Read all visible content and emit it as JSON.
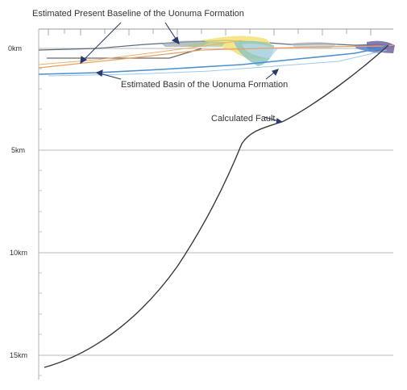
{
  "annotations": {
    "present_baseline": "Estimated Present Baseline of the Uonuma Formation",
    "basin": "Estimated Basin of the Uonuma Formation",
    "fault": "Calculated Fault"
  },
  "depth_axis": {
    "labels": [
      "0km",
      "5km",
      "10km",
      "15km"
    ]
  },
  "colors": {
    "fault_line": "#3a3a3a",
    "basin_line": "#4a90d0",
    "baseline_line": "#e8a060",
    "gridline": "#c8c8c8",
    "annotation_arrow": "#2a3a6a"
  }
}
